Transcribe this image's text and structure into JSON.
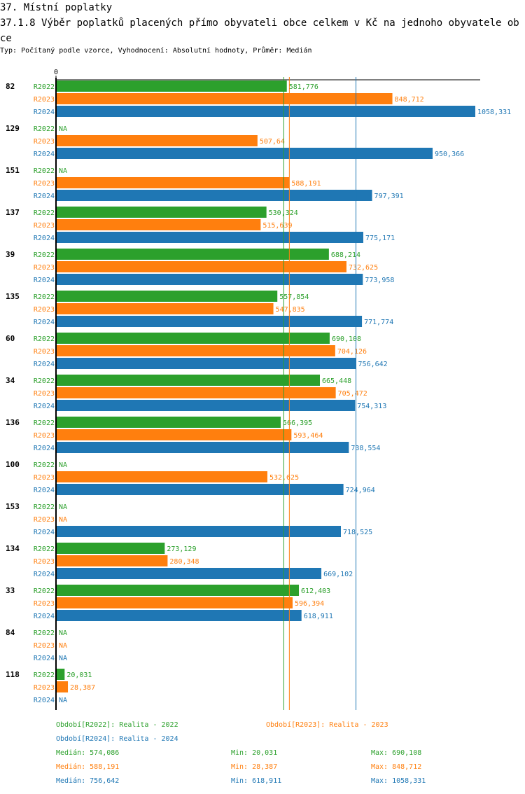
{
  "header": {
    "title": "37. Místní poplatky",
    "subtitle": "37.1.8 Výběr poplatků placených přímo obyvateli obce celkem  v Kč na jednoho obyvatele obce",
    "meta": "Typ: Počítaný podle vzorce, Vyhodnocení: Absolutní hodnoty, Průměr: Medián"
  },
  "colors": {
    "R2022": "#2ca02c",
    "R2023": "#ff7f0e",
    "R2024": "#1f77b4"
  },
  "chart_data": {
    "type": "bar",
    "orientation": "horizontal",
    "title": "37.1.8 Výběr poplatků placených přímo obyvateli obce celkem  v Kč na jednoho obyvatele obce",
    "xlabel": "",
    "ylabel": "",
    "x_tick_labels": [
      "0"
    ],
    "xlim": [
      0,
      1058.331
    ],
    "categories": [
      "82",
      "129",
      "151",
      "137",
      "39",
      "135",
      "60",
      "34",
      "136",
      "100",
      "153",
      "134",
      "33",
      "84",
      "118"
    ],
    "series": [
      {
        "name": "R2022",
        "values": [
          581.776,
          null,
          null,
          530.324,
          688.214,
          557.854,
          690.108,
          665.448,
          566.395,
          null,
          null,
          273.129,
          612.403,
          null,
          20.031
        ],
        "labels": [
          "581,776",
          "NA",
          "NA",
          "530,324",
          "688,214",
          "557,854",
          "690,108",
          "665,448",
          "566,395",
          "NA",
          "NA",
          "273,129",
          "612,403",
          "NA",
          "20,031"
        ]
      },
      {
        "name": "R2023",
        "values": [
          848.712,
          507.64,
          588.191,
          515.639,
          732.625,
          547.835,
          704.126,
          705.472,
          593.464,
          532.625,
          null,
          280.348,
          596.394,
          null,
          28.387
        ],
        "labels": [
          "848,712",
          "507,64",
          "588,191",
          "515,639",
          "732,625",
          "547,835",
          "704,126",
          "705,472",
          "593,464",
          "532,625",
          "NA",
          "280,348",
          "596,394",
          "NA",
          "28,387"
        ]
      },
      {
        "name": "R2024",
        "values": [
          1058.331,
          950.366,
          797.391,
          775.171,
          773.958,
          771.774,
          756.642,
          754.313,
          738.554,
          724.964,
          718.525,
          669.102,
          618.911,
          null,
          null
        ],
        "labels": [
          "1058,331",
          "950,366",
          "797,391",
          "775,171",
          "773,958",
          "771,774",
          "756,642",
          "754,313",
          "738,554",
          "724,964",
          "718,525",
          "669,102",
          "618,911",
          "NA",
          "NA"
        ]
      }
    ],
    "medians": {
      "R2022": 574.086,
      "R2023": 588.191,
      "R2024": 756.642
    },
    "legend": [
      "Období[R2022]: Realita - 2022",
      "Období[R2023]: Realita - 2023",
      "Období[R2024]: Realita - 2024"
    ],
    "stats": [
      {
        "series": "R2022",
        "median": "Medián: 574,086",
        "min": "Min: 20,031",
        "max": "Max: 690,108"
      },
      {
        "series": "R2023",
        "median": "Medián: 588,191",
        "min": "Min: 28,387",
        "max": "Max: 848,712"
      },
      {
        "series": "R2024",
        "median": "Medián: 756,642",
        "min": "Min: 618,911",
        "max": "Max: 1058,331"
      }
    ]
  }
}
